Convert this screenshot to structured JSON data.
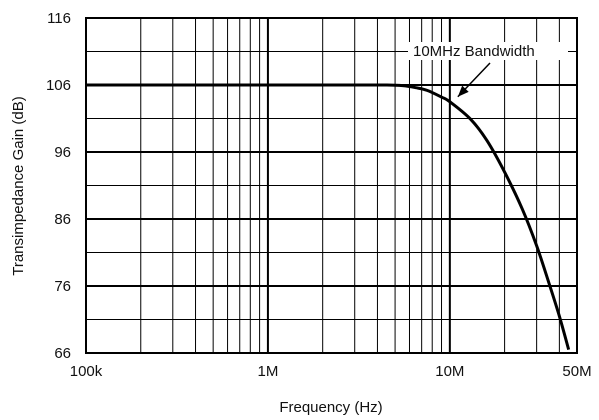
{
  "chart_data": {
    "type": "line",
    "title": "",
    "xlabel": "Frequency (Hz)",
    "ylabel": "Transimpedance Gain (dB)",
    "xscale": "log",
    "xlim": [
      100000,
      50000000
    ],
    "ylim": [
      66,
      116
    ],
    "grid": true,
    "x_ticks": [
      {
        "value": 100000,
        "label": "100k"
      },
      {
        "value": 1000000,
        "label": "1M"
      },
      {
        "value": 10000000,
        "label": "10M"
      },
      {
        "value": 50000000,
        "label": "50M"
      }
    ],
    "y_ticks": [
      {
        "value": 66,
        "label": "66"
      },
      {
        "value": 76,
        "label": "76"
      },
      {
        "value": 86,
        "label": "86"
      },
      {
        "value": 96,
        "label": "96"
      },
      {
        "value": 106,
        "label": "106"
      },
      {
        "value": 116,
        "label": "116"
      }
    ],
    "series": [
      {
        "color": "#000000",
        "x": [
          100000,
          1000000,
          3000000,
          4500000,
          5500000,
          6500000,
          7500000,
          9000000,
          10000000,
          13000000,
          16000000,
          20000000,
          25000000,
          30000000,
          35000000,
          40000000,
          45000000
        ],
        "y": [
          106,
          106,
          106,
          106,
          105.9,
          105.6,
          105.2,
          104.2,
          103.5,
          100.9,
          97.7,
          93,
          87.5,
          82,
          76.5,
          71.5,
          66.5
        ]
      }
    ],
    "annotations": [
      {
        "text": "10MHz Bandwidth",
        "x": 10000000,
        "y": 103.5
      }
    ]
  }
}
